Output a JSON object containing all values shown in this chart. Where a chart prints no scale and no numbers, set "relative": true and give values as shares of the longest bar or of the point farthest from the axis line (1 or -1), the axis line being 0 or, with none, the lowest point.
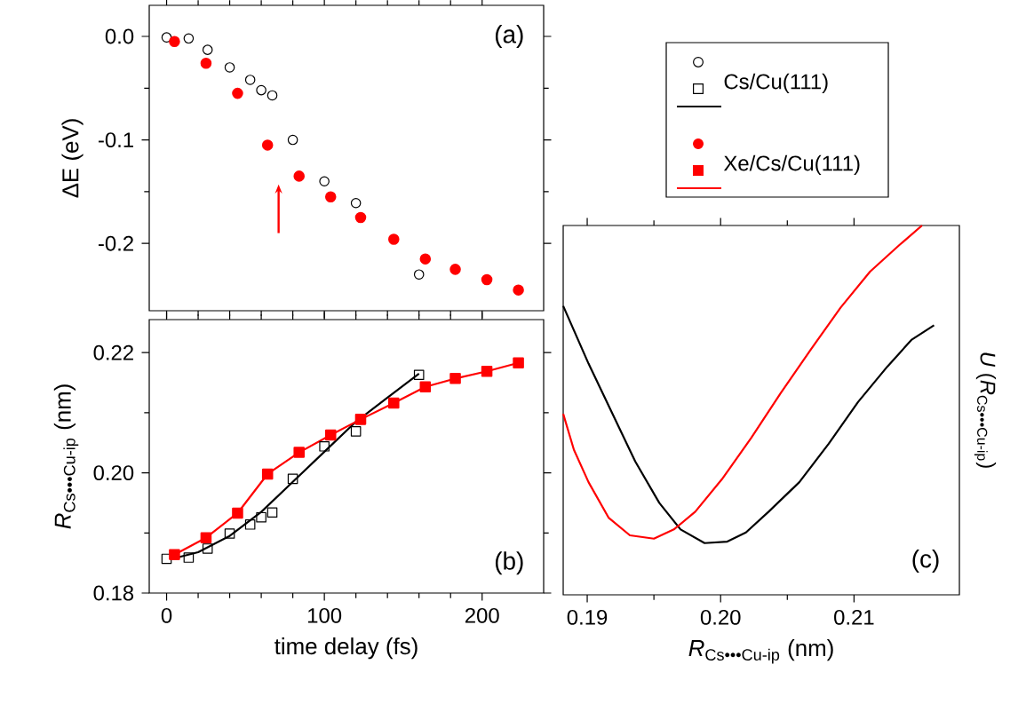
{
  "chart_data": [
    {
      "type": "scatter",
      "ylabel": "ΔE (eV)",
      "xlim": [
        -11,
        239
      ],
      "xticks": [
        0,
        100,
        200
      ],
      "ylim": [
        -0.265,
        0.03
      ],
      "yticks": [
        {
          "value": 0,
          "label": "0.0"
        },
        -0.1,
        -0.2
      ],
      "tick_labels": "y",
      "legend": "right",
      "marker": "circle",
      "annotations": [
        "(a)"
      ],
      "series": [
        {
          "name": "Cs/Cu(111)",
          "color": "#000000",
          "x": [
            0,
            14,
            26,
            40,
            53,
            60,
            67,
            80,
            100,
            120,
            160
          ],
          "values": [
            -0.001,
            -0.002,
            -0.013,
            -0.03,
            -0.042,
            -0.052,
            -0.057,
            -0.1,
            -0.14,
            -0.161,
            -0.23
          ]
        },
        {
          "name": "Xe/Cs/Cu(111)",
          "color": "#ff0000",
          "x": [
            5,
            25,
            45,
            64,
            84,
            104,
            123,
            144,
            164,
            183,
            203,
            223
          ],
          "values": [
            -0.005,
            -0.026,
            -0.055,
            -0.105,
            -0.135,
            -0.155,
            -0.175,
            -0.196,
            -0.215,
            -0.225,
            -0.235,
            -0.245
          ]
        }
      ]
    },
    {
      "type": "scatter",
      "xlabel": "time delay (fs)",
      "ylabel": "*R*$_{Cs•••Cu-ip}$ (nm)",
      "xlim": [
        -11,
        239
      ],
      "xticks": [
        0,
        100,
        200
      ],
      "ylim": [
        0.18,
        0.2255
      ],
      "yticks": [
        0.18,
        {
          "value": 0.2,
          "label": "0.20"
        },
        0.22
      ],
      "marker": "square",
      "annotations": [
        "(b)"
      ],
      "series": [
        {
          "type": "scatter",
          "color": "#000000",
          "x": [
            0,
            14,
            26,
            40,
            53,
            60,
            67,
            80,
            100,
            120,
            160
          ],
          "values": [
            0.1857,
            0.1859,
            0.1874,
            0.1899,
            0.1914,
            0.1926,
            0.1934,
            0.199,
            0.2044,
            0.2069,
            0.2163
          ]
        },
        {
          "type": "line",
          "marker": "none",
          "color": "#000000",
          "x": [
            5,
            20,
            40,
            60,
            80,
            100,
            120,
            140,
            160
          ],
          "values": [
            0.1858,
            0.1868,
            0.1895,
            0.1935,
            0.1985,
            0.2035,
            0.2085,
            0.2125,
            0.2165
          ]
        },
        {
          "type": "line",
          "color": "#ff0000",
          "x": [
            5,
            25,
            45,
            64,
            84,
            104,
            123,
            144,
            164,
            183,
            203,
            223
          ],
          "values": [
            0.1864,
            0.1892,
            0.1933,
            0.1998,
            0.2034,
            0.2063,
            0.2089,
            0.2116,
            0.2143,
            0.2157,
            0.2169,
            0.2183
          ]
        }
      ]
    },
    {
      "type": "line",
      "relative": true,
      "xlabel": "*R*$_{Cs•••Cu-ip}$ (nm)",
      "ylabel": "*U* (*R*$_{Cs•••Cu-ip}$)",
      "xlim": [
        0.1882,
        0.2179
      ],
      "xticks": [
        0.19,
        {
          "value": 0.2,
          "label": "0.20"
        },
        0.21
      ],
      "annotations": [
        "(c)"
      ],
      "series": [
        {
          "color": "#000000",
          "x": [
            0.1882,
            0.1901,
            0.1919,
            0.1936,
            0.1954,
            0.197,
            0.1988,
            0.2005,
            0.2019,
            0.2036,
            0.2059,
            0.2081,
            0.2103,
            0.2125,
            0.2143,
            0.216
          ],
          "values": [
            0.782,
            0.626,
            0.49,
            0.361,
            0.249,
            0.177,
            0.14,
            0.144,
            0.169,
            0.225,
            0.305,
            0.409,
            0.522,
            0.618,
            0.69,
            0.73
          ]
        },
        {
          "color": "#ff0000",
          "x": [
            0.1882,
            0.189,
            0.1901,
            0.1916,
            0.1932,
            0.195,
            0.1965,
            0.1981,
            0.2001,
            0.2023,
            0.2045,
            0.2068,
            0.209,
            0.2112,
            0.2134,
            0.2151
          ],
          "values": [
            0.49,
            0.393,
            0.305,
            0.209,
            0.161,
            0.152,
            0.177,
            0.225,
            0.313,
            0.425,
            0.546,
            0.666,
            0.778,
            0.875,
            0.947,
            1.0
          ]
        }
      ]
    }
  ]
}
